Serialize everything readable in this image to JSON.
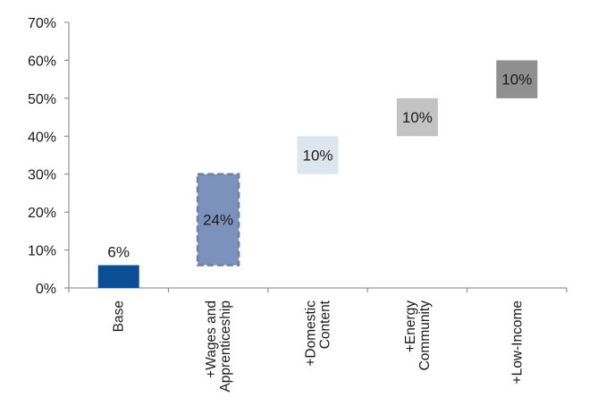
{
  "chart_data": {
    "type": "bar",
    "subtype": "waterfall",
    "title": "",
    "xlabel": "",
    "ylabel": "",
    "ylim": [
      0,
      70
    ],
    "y_ticks": [
      "0%",
      "10%",
      "20%",
      "30%",
      "40%",
      "50%",
      "60%",
      "70%"
    ],
    "grid": false,
    "legend": "none",
    "bars": [
      {
        "category_lines": [
          "Base"
        ],
        "start": 0,
        "value": 6,
        "label": "6%",
        "color": "#0a4f96",
        "dashed": false,
        "label_position": "above"
      },
      {
        "category_lines": [
          "+Wages and",
          "Apprenticeship"
        ],
        "start": 6,
        "value": 24,
        "label": "24%",
        "color": "#7d91bd",
        "dashed": true,
        "label_position": "inside"
      },
      {
        "category_lines": [
          "+Domestic",
          "Content"
        ],
        "start": 30,
        "value": 10,
        "label": "10%",
        "color": "#dde6ef",
        "dashed": false,
        "label_position": "inside"
      },
      {
        "category_lines": [
          "+Energy",
          "Community"
        ],
        "start": 40,
        "value": 10,
        "label": "10%",
        "color": "#c3c3c3",
        "dashed": false,
        "label_position": "inside"
      },
      {
        "category_lines": [
          "+Low-Income"
        ],
        "start": 50,
        "value": 10,
        "label": "10%",
        "color": "#8f8f8f",
        "dashed": false,
        "label_position": "inside"
      }
    ]
  }
}
